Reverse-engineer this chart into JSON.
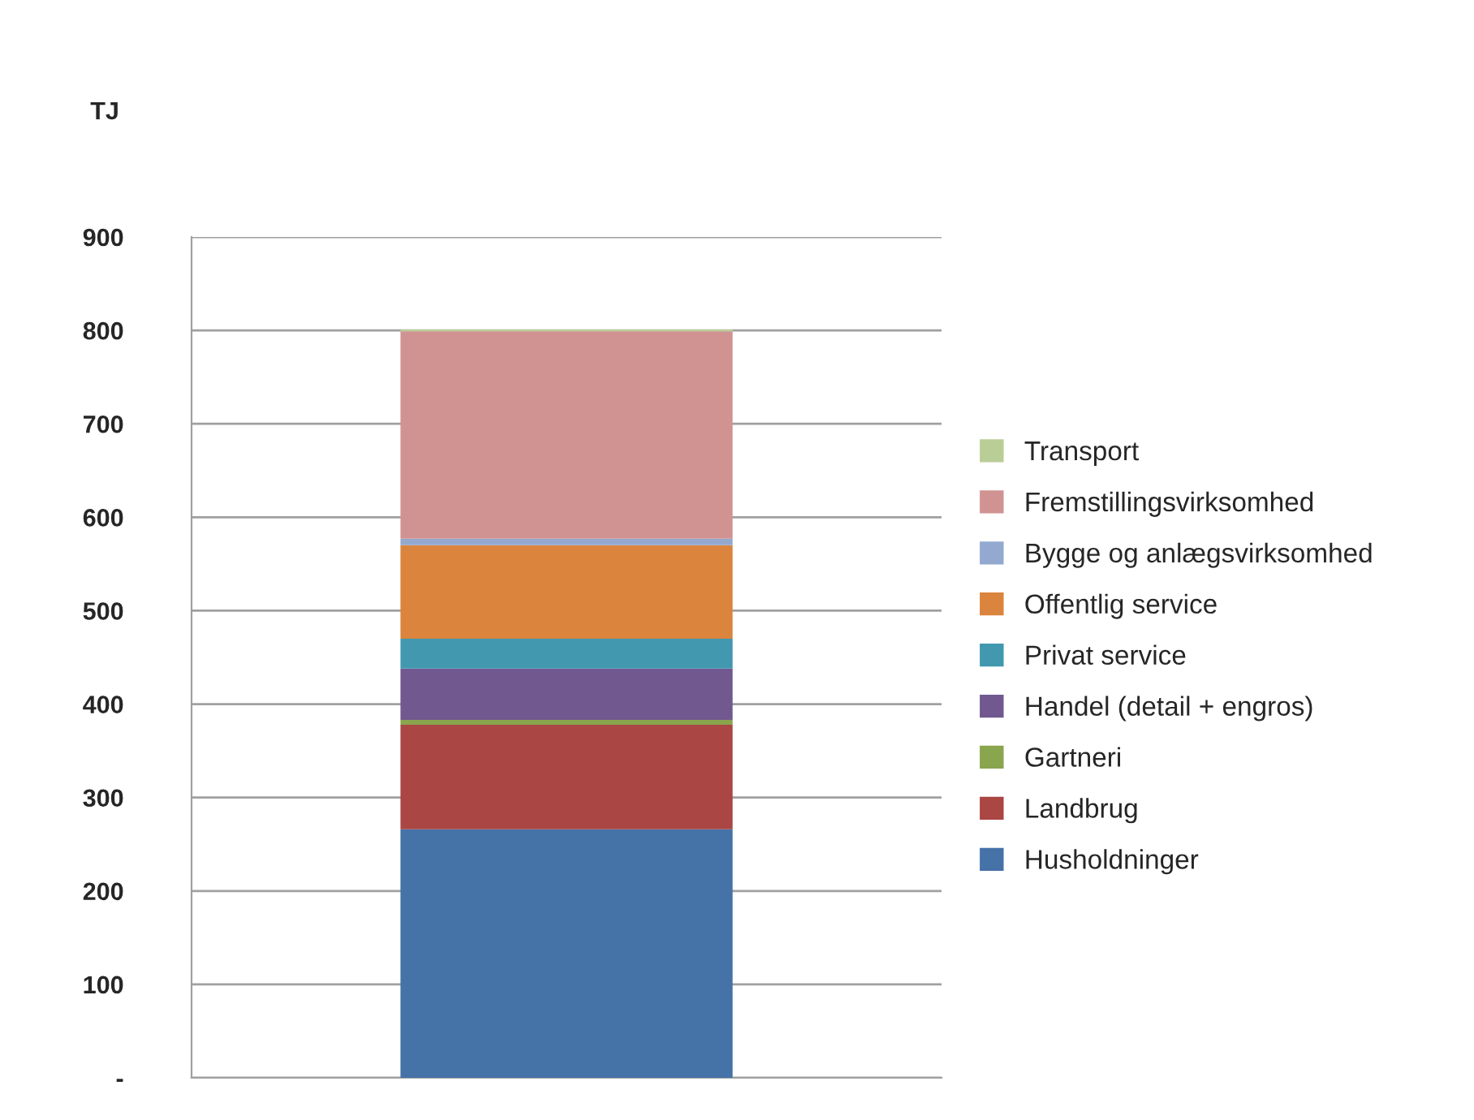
{
  "chart_data": {
    "type": "bar",
    "stacked": true,
    "ylabel": "TJ",
    "categories": [
      null
    ],
    "series": [
      {
        "name": "Husholdninger",
        "color": "#4572a7",
        "values": [
          266
        ]
      },
      {
        "name": "Landbrug",
        "color": "#aa4643",
        "values": [
          112
        ]
      },
      {
        "name": "Gartneri",
        "color": "#89a54e",
        "values": [
          5
        ]
      },
      {
        "name": "Handel (detail + engros)",
        "color": "#71588f",
        "values": [
          55
        ]
      },
      {
        "name": "Privat service",
        "color": "#4198af",
        "values": [
          32
        ]
      },
      {
        "name": "Offentlig service",
        "color": "#db843d",
        "values": [
          100
        ]
      },
      {
        "name": "Bygge og anlægsvirksomhed",
        "color": "#93a9cf",
        "values": [
          7
        ]
      },
      {
        "name": "Fremstillingsvirksomhed",
        "color": "#d19392",
        "values": [
          222
        ]
      },
      {
        "name": "Transport",
        "color": "#b9cd96",
        "values": [
          2
        ]
      }
    ],
    "ylim": [
      0,
      900
    ],
    "yticks": [
      {
        "value": 0,
        "label": "-"
      },
      100,
      200,
      300,
      400,
      500,
      600,
      700,
      800,
      900
    ],
    "grid": "y",
    "legend": "right"
  }
}
